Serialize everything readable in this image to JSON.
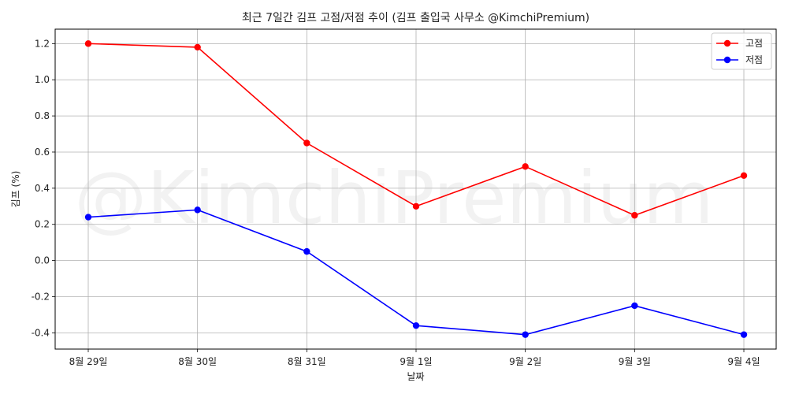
{
  "chart_data": {
    "type": "line",
    "title": "최근 7일간 김프 고점/저점 추이 (김프 출입국 사무소 @KimchiPremium)",
    "xlabel": "날짜",
    "ylabel": "김프 (%)",
    "categories": [
      "8월 29일",
      "8월 30일",
      "8월 31일",
      "9월 1일",
      "9월 2일",
      "9월 3일",
      "9월 4일"
    ],
    "series": [
      {
        "name": "고점",
        "color": "#ff0000",
        "values": [
          1.2,
          1.18,
          0.65,
          0.3,
          0.52,
          0.25,
          0.47
        ]
      },
      {
        "name": "저점",
        "color": "#0000ff",
        "values": [
          0.24,
          0.28,
          0.05,
          -0.36,
          -0.41,
          -0.25,
          -0.41
        ]
      }
    ],
    "ylim": [
      -0.49,
      1.28
    ],
    "yticks": [
      -0.4,
      -0.2,
      0.0,
      0.2,
      0.4,
      0.6,
      0.8,
      1.0,
      1.2
    ],
    "ytick_labels": [
      "-0.4",
      "-0.2",
      "0.0",
      "0.2",
      "0.4",
      "0.6",
      "0.8",
      "1.0",
      "1.2"
    ],
    "grid": true,
    "legend_position": "top-right",
    "watermark": "@KimchiPremium"
  }
}
